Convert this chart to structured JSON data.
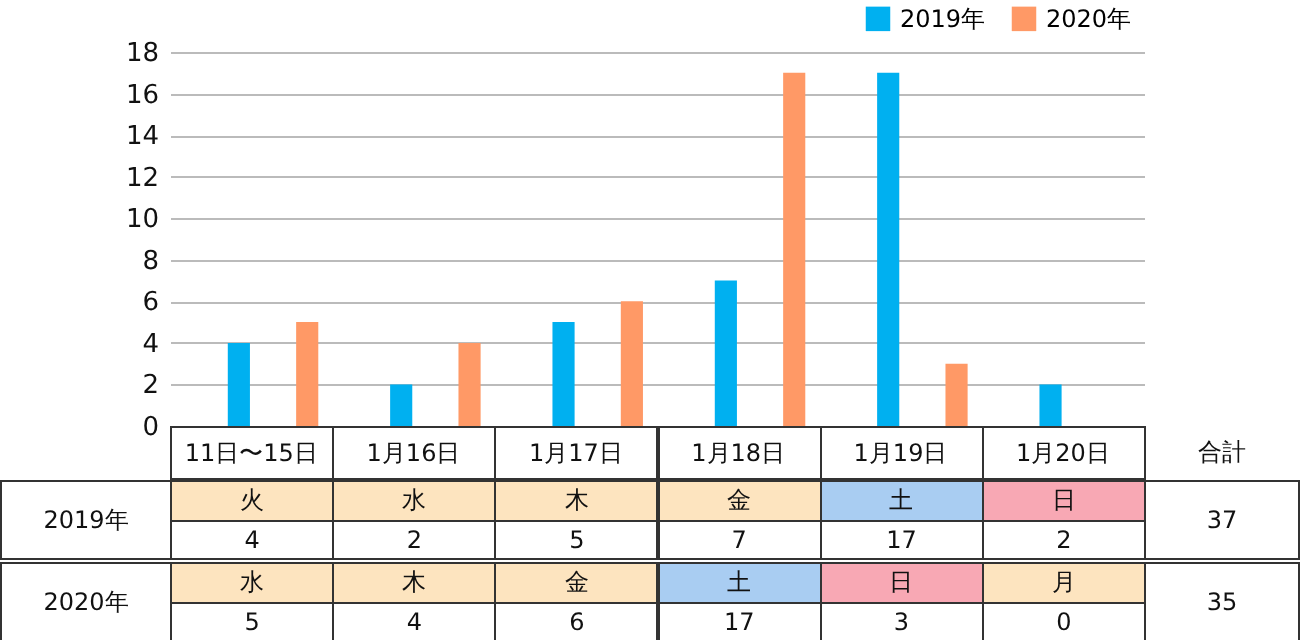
{
  "chart_data": {
    "type": "bar",
    "categories": [
      "11日〜15日",
      "1月16日",
      "1月17日",
      "1月18日",
      "1月19日",
      "1月20日"
    ],
    "series": [
      {
        "name": "2019年",
        "color": "#00b0f0",
        "values": [
          4,
          2,
          5,
          7,
          17,
          2
        ]
      },
      {
        "name": "2020年",
        "color": "#ff9966",
        "values": [
          5,
          4,
          6,
          17,
          3,
          0
        ]
      }
    ],
    "ylim": [
      0,
      18
    ],
    "yticks": [
      0,
      2,
      4,
      6,
      8,
      10,
      12,
      14,
      16,
      18
    ],
    "grid": "y",
    "legend": "top right",
    "data_labels": true,
    "annotations": [
      "火",
      "水",
      "木",
      "金",
      "土",
      "日",
      "水",
      "木",
      "金",
      "土",
      "日",
      "月",
      "合計",
      "37",
      "35"
    ]
  }
}
